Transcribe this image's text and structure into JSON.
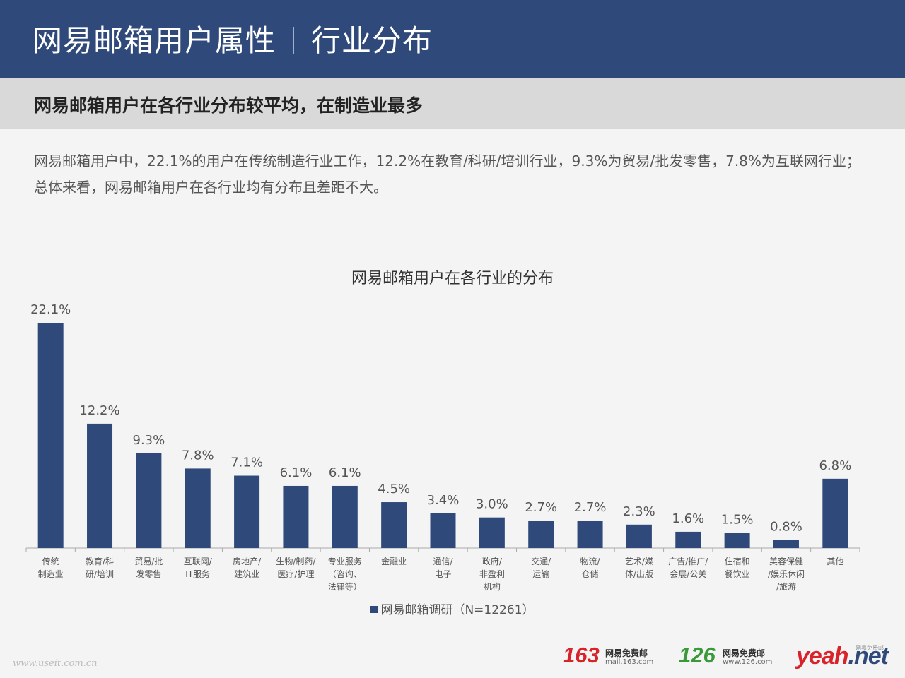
{
  "header": {
    "title_left": "网易邮箱用户属性",
    "title_right": "行业分布"
  },
  "subheader": {
    "text": "网易邮箱用户在各行业分布较平均，在制造业最多"
  },
  "description": {
    "line1": "网易邮箱用户中，22.1%的用户在传统制造行业工作，12.2%在教育/科研/培训行业，9.3%为贸易/批发零售，7.8%为互联网行业；",
    "line2": "总体来看，网易邮箱用户在各行业均有分布且差距不大。"
  },
  "colors": {
    "bar": "#2f4a7a",
    "header_bg": "#2f4a7a",
    "brand_red": "#d9232a",
    "brand_green": "#3a9a3a"
  },
  "chart_data": {
    "type": "bar",
    "title": "网易邮箱用户在各行业的分布",
    "categories": [
      [
        "传统",
        "制造业"
      ],
      [
        "教育/科",
        "研/培训"
      ],
      [
        "贸易/批",
        "发零售"
      ],
      [
        "互联网/",
        "IT服务"
      ],
      [
        "房地产/",
        "建筑业"
      ],
      [
        "生物/制药/",
        "医疗/护理"
      ],
      [
        "专业服务",
        "（咨询、",
        "法律等）"
      ],
      [
        "金融业"
      ],
      [
        "通信/",
        "电子"
      ],
      [
        "政府/",
        "非盈利",
        "机构"
      ],
      [
        "交通/",
        "运输"
      ],
      [
        "物流/",
        "仓储"
      ],
      [
        "艺术/媒",
        "体/出版"
      ],
      [
        "广告/推广/",
        "会展/公关"
      ],
      [
        "住宿和",
        "餐饮业"
      ],
      [
        "美容保健",
        "/娱乐休闲",
        "/旅游"
      ],
      [
        "其他"
      ]
    ],
    "series": [
      {
        "name": "网易邮箱调研（N=12261）",
        "values": [
          22.1,
          12.2,
          9.3,
          7.8,
          7.1,
          6.1,
          6.1,
          4.5,
          3.4,
          3.0,
          2.7,
          2.7,
          2.3,
          1.6,
          1.5,
          0.8,
          6.8
        ]
      }
    ],
    "data_labels": [
      "22.1%",
      "12.2%",
      "9.3%",
      "7.8%",
      "7.1%",
      "6.1%",
      "6.1%",
      "4.5%",
      "3.4%",
      "3.0%",
      "2.7%",
      "2.7%",
      "2.3%",
      "1.6%",
      "1.5%",
      "0.8%",
      "6.8%"
    ],
    "ylim": [
      0,
      22.1
    ],
    "grid": false,
    "legend_position": "bottom"
  },
  "footer": {
    "watermark": "www.useit.com.cn",
    "brand163_num": "163",
    "brand163_cn": "网易免费邮",
    "brand163_url": "mail.163.com",
    "brand126_num": "126",
    "brand126_cn": "网易免费邮",
    "brand126_url": "www.126.com",
    "yeah_main": "yeah",
    "yeah_net": ".net",
    "yeah_tag": "网易免费邮"
  }
}
